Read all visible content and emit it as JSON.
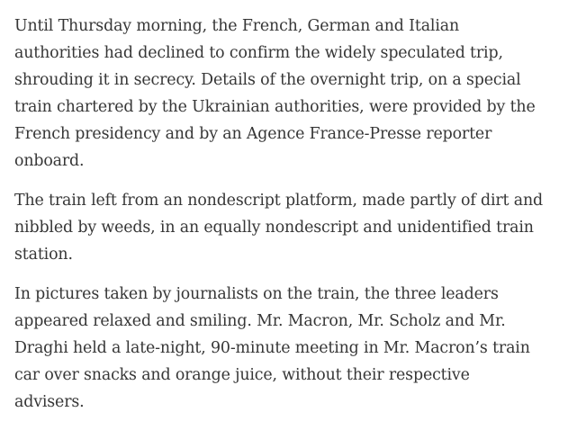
{
  "article": {
    "paragraphs": [
      {
        "lines": [
          "Until Thursday morning, the French, German and Italian",
          "authorities had declined to confirm the widely speculated trip,",
          "shrouding it in secrecy. Details of the overnight trip, on a special",
          "train chartered by the Ukrainian authorities, were provided by the",
          "French presidency and by an Agence France-Presse reporter",
          "onboard."
        ]
      },
      {
        "lines": [
          "The train left from an nondescript platform, made partly of dirt and",
          "nibbled by weeds, in an equally nondescript and unidentified train",
          "station."
        ]
      },
      {
        "lines": [
          "In pictures taken by journalists on the train, the three leaders",
          "appeared relaxed and smiling. Mr. Macron, Mr. Scholz and Mr.",
          "Draghi held a late-night, 90-minute meeting in Mr. Macron’s train",
          "car over snacks and orange juice, without their respective",
          "advisers."
        ]
      }
    ]
  }
}
